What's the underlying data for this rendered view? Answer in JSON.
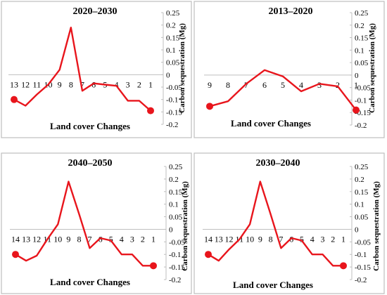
{
  "colors": {
    "series": "#e8151c",
    "axis": "#bfbfbf",
    "frame": "#bfbfbf"
  },
  "chart_data": [
    {
      "type": "line",
      "title": "2020–2030",
      "xlabel": "Land cover Changes",
      "ylabel": "Carbon sequestration (Mg)",
      "ylim": [
        -0.2,
        0.25
      ],
      "yticks": [
        "0.25",
        "0.2",
        "0.15",
        "0.1",
        "0.05",
        "0",
        "-0.05",
        "-0.1",
        "-0.15",
        "-0.2"
      ],
      "categories": [
        "13",
        "12",
        "11",
        "10",
        "9",
        "8",
        "7",
        "6",
        "5",
        "4",
        "3",
        "2",
        "1"
      ],
      "values": [
        -0.1,
        -0.125,
        -0.08,
        -0.04,
        0.02,
        0.19,
        -0.065,
        -0.035,
        -0.04,
        -0.045,
        -0.105,
        -0.105,
        -0.145
      ],
      "grid": false,
      "markers": "first and last points"
    },
    {
      "type": "line",
      "title": "2013–2020",
      "xlabel": "Land cover Changes",
      "ylabel": "Carbon sequestration (Mg)",
      "ylim": [
        -0.2,
        0.25
      ],
      "yticks": [
        "0.25",
        "0.2",
        "0.15",
        "0.1",
        "0.05",
        "0",
        "-0.05",
        "-0.1",
        "-0.15",
        "-0.2"
      ],
      "categories": [
        "9",
        "8",
        "7",
        "6",
        "5",
        "4",
        "3",
        "2",
        "1"
      ],
      "values": [
        -0.125,
        -0.105,
        -0.035,
        0.02,
        -0.005,
        -0.065,
        -0.035,
        -0.045,
        -0.14
      ],
      "grid": false,
      "markers": "first and last points"
    },
    {
      "type": "line",
      "title": "2040–2050",
      "xlabel": "Land cover Changes",
      "ylabel": "Carbon sequestration (Mg)",
      "ylim": [
        -0.2,
        0.25
      ],
      "yticks": [
        "0.25",
        "0.2",
        "0.15",
        "0.1",
        "0.05",
        "0",
        "-0.05",
        "-0.1",
        "-0.15",
        "-0.2"
      ],
      "categories": [
        "14",
        "13",
        "12",
        "11",
        "10",
        "9",
        "8",
        "7",
        "6",
        "5",
        "4",
        "3",
        "2",
        "1"
      ],
      "values": [
        -0.1,
        -0.125,
        -0.105,
        -0.04,
        0.02,
        0.19,
        0.06,
        -0.075,
        -0.035,
        -0.045,
        -0.1,
        -0.1,
        -0.145,
        -0.145
      ],
      "grid": false,
      "markers": "first and last points"
    },
    {
      "type": "line",
      "title": "2030–2040",
      "xlabel": "Land cover Changes",
      "ylabel": "Carbon sequestration (Mg)",
      "ylim": [
        -0.2,
        0.25
      ],
      "yticks": [
        "0.25",
        "0.2",
        "0.15",
        "0.1",
        "0.05",
        "0",
        "-0.05",
        "-0.1",
        "-0.15",
        "-0.2"
      ],
      "categories": [
        "14",
        "13",
        "12",
        "11",
        "10",
        "9",
        "8",
        "7",
        "6",
        "5",
        "4",
        "3",
        "2",
        "1"
      ],
      "values": [
        -0.1,
        -0.125,
        -0.08,
        -0.04,
        0.02,
        0.19,
        0.06,
        -0.075,
        -0.035,
        -0.045,
        -0.1,
        -0.1,
        -0.145,
        -0.145
      ],
      "grid": false,
      "markers": "first and last points"
    }
  ]
}
